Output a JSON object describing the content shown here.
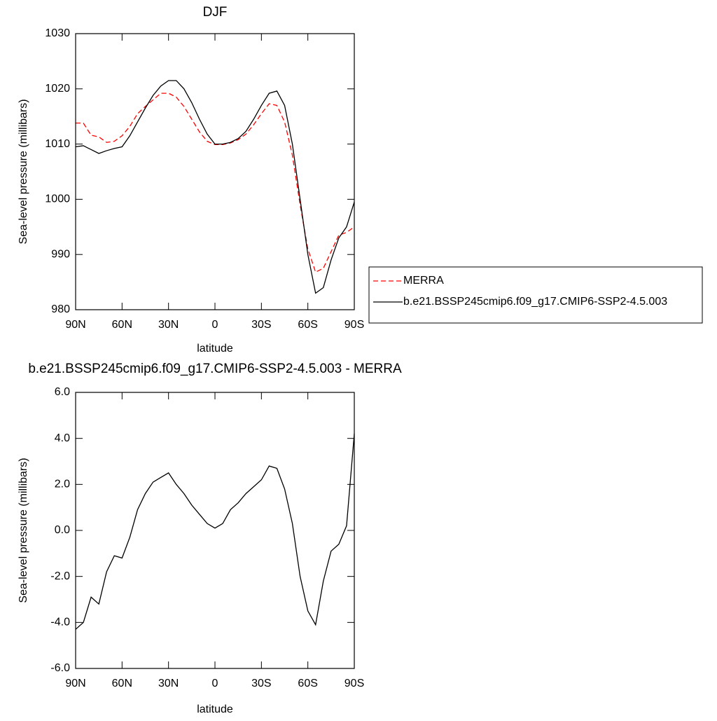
{
  "chart_data": [
    {
      "type": "line",
      "title": "DJF",
      "xlabel": "latitude",
      "ylabel": "Sea-level pressure (millibars)",
      "x": [
        90,
        85,
        80,
        75,
        70,
        65,
        60,
        55,
        50,
        45,
        40,
        35,
        30,
        25,
        20,
        15,
        10,
        5,
        0,
        -5,
        -10,
        -15,
        -20,
        -25,
        -30,
        -35,
        -40,
        -45,
        -50,
        -55,
        -60,
        -65,
        -70,
        -75,
        -80,
        -85,
        -90
      ],
      "xlim": [
        90,
        -90
      ],
      "xticks": [
        {
          "value": 90,
          "label": "90N"
        },
        {
          "value": 60,
          "label": "60N"
        },
        {
          "value": 30,
          "label": "30N"
        },
        0,
        {
          "value": -30,
          "label": "30S"
        },
        {
          "value": -60,
          "label": "60S"
        },
        {
          "value": -90,
          "label": "90S"
        }
      ],
      "ylim": [
        980,
        1030
      ],
      "yticks": [
        980,
        990,
        1000,
        1010,
        1020,
        1030
      ],
      "legend": "right",
      "series": [
        {
          "name": "MERRA",
          "color": "#ff0000",
          "dash": true,
          "values": [
            1013.8,
            1013.8,
            1011.6,
            1011.3,
            1010.3,
            1010.5,
            1011.5,
            1013.2,
            1015.5,
            1016.8,
            1018,
            1019.2,
            1019.2,
            1018.5,
            1016.8,
            1014.5,
            1012.2,
            1010.5,
            1009.9,
            1009.9,
            1010.2,
            1010.8,
            1011.8,
            1013.5,
            1015.5,
            1017.3,
            1017,
            1014,
            1008,
            999,
            991,
            986.8,
            987.5,
            990.5,
            993.5,
            994,
            995
          ]
        },
        {
          "name": "b.e21.BSSP245cmip6.f09_g17.CMIP6-SSP2-4.5.003",
          "color": "#000000",
          "dash": false,
          "values": [
            1009.5,
            1009.7,
            1009,
            1008.3,
            1008.8,
            1009.2,
            1009.5,
            1011.5,
            1014,
            1016.5,
            1018.8,
            1020.5,
            1021.5,
            1021.5,
            1020,
            1017.5,
            1014.5,
            1011.8,
            1010,
            1010,
            1010.3,
            1011,
            1012.3,
            1014.5,
            1017,
            1019.2,
            1019.6,
            1017,
            1010,
            1000,
            990,
            983,
            984,
            989,
            993,
            995,
            999.5
          ]
        }
      ]
    },
    {
      "type": "line",
      "title": "b.e21.BSSP245cmip6.f09_g17.CMIP6-SSP2-4.5.003 - MERRA",
      "xlabel": "latitude",
      "ylabel": "Sea-level pressure (millibars)",
      "x": [
        90,
        85,
        80,
        75,
        70,
        65,
        60,
        55,
        50,
        45,
        40,
        35,
        30,
        25,
        20,
        15,
        10,
        5,
        0,
        -5,
        -10,
        -15,
        -20,
        -25,
        -30,
        -35,
        -40,
        -45,
        -50,
        -55,
        -60,
        -65,
        -70,
        -75,
        -80,
        -85,
        -90
      ],
      "xlim": [
        90,
        -90
      ],
      "xticks": [
        {
          "value": 90,
          "label": "90N"
        },
        {
          "value": 60,
          "label": "60N"
        },
        {
          "value": 30,
          "label": "30N"
        },
        0,
        {
          "value": -30,
          "label": "30S"
        },
        {
          "value": -60,
          "label": "60S"
        },
        {
          "value": -90,
          "label": "90S"
        }
      ],
      "ylim": [
        -6,
        6
      ],
      "yticks": [
        {
          "value": -6,
          "label": "-6.0"
        },
        {
          "value": -4,
          "label": "-4.0"
        },
        {
          "value": -2,
          "label": "-2.0"
        },
        {
          "value": 0,
          "label": "0.0"
        },
        {
          "value": 2,
          "label": "2.0"
        },
        {
          "value": 4,
          "label": "4.0"
        },
        {
          "value": 6,
          "label": "6.0"
        }
      ],
      "series": [
        {
          "color": "#000000",
          "dash": false,
          "values": [
            -4.3,
            -4.0,
            -2.9,
            -3.2,
            -1.8,
            -1.1,
            -1.2,
            -0.3,
            0.9,
            1.6,
            2.1,
            2.3,
            2.5,
            2.0,
            1.6,
            1.1,
            0.7,
            0.3,
            0.1,
            0.3,
            0.9,
            1.2,
            1.6,
            1.9,
            2.2,
            2.8,
            2.7,
            1.8,
            0.3,
            -2.0,
            -3.5,
            -4.1,
            -2.2,
            -0.9,
            -0.6,
            0.2,
            4.2
          ]
        }
      ]
    }
  ]
}
